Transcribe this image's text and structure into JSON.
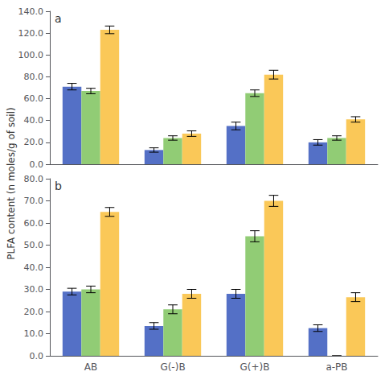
{
  "chart_data": [
    {
      "type": "bar",
      "annotation": "a",
      "ylabel": "PLFA content (n moles/g of soil)",
      "categories": [
        "AB",
        "G(-)B",
        "G(+)B",
        "a-PB"
      ],
      "series": [
        {
          "values": [
            71.0,
            13.0,
            35.0,
            20.0
          ],
          "errors": [
            3.0,
            2.0,
            3.5,
            2.5
          ]
        },
        {
          "values": [
            67.0,
            24.0,
            65.0,
            24.0
          ],
          "errors": [
            2.5,
            2.0,
            3.0,
            2.0
          ]
        },
        {
          "values": [
            123.0,
            28.0,
            82.0,
            41.0
          ],
          "errors": [
            3.5,
            2.5,
            4.0,
            2.5
          ]
        }
      ],
      "ylim": [
        0,
        140
      ],
      "yticks": [
        {
          "value": 0,
          "label": "0.0"
        },
        {
          "value": 20,
          "label": "20.0"
        },
        {
          "value": 40,
          "label": "40.0"
        },
        {
          "value": 60,
          "label": "60.0"
        },
        {
          "value": 80,
          "label": "80.0"
        },
        {
          "value": 100,
          "label": "100.0"
        },
        {
          "value": 120,
          "label": "120.0"
        },
        {
          "value": 140,
          "label": "140.0"
        }
      ],
      "tick_labels": "y",
      "grid": false
    },
    {
      "type": "bar",
      "annotation": "b",
      "categories": [
        "AB",
        "G(-)B",
        "G(+)B",
        "a-PB"
      ],
      "series": [
        {
          "values": [
            29.0,
            13.5,
            28.0,
            12.5
          ],
          "errors": [
            1.5,
            1.5,
            2.0,
            1.5
          ]
        },
        {
          "values": [
            30.0,
            21.0,
            54.0,
            0.0
          ],
          "errors": [
            1.5,
            2.0,
            2.5,
            0.0
          ]
        },
        {
          "values": [
            65.0,
            28.0,
            70.0,
            26.5
          ],
          "errors": [
            2.0,
            2.0,
            2.5,
            2.0
          ]
        }
      ],
      "ylim": [
        0,
        80
      ],
      "yticks": [
        {
          "value": 0,
          "label": "0.0"
        },
        {
          "value": 10,
          "label": "10.0"
        },
        {
          "value": 20,
          "label": "20.0"
        },
        {
          "value": 30,
          "label": "30.0"
        },
        {
          "value": 40,
          "label": "40.0"
        },
        {
          "value": 50,
          "label": "50.0"
        },
        {
          "value": 60,
          "label": "60.0"
        },
        {
          "value": 70,
          "label": "70.0"
        },
        {
          "value": 80,
          "label": "80.0"
        }
      ],
      "grid": false
    }
  ]
}
